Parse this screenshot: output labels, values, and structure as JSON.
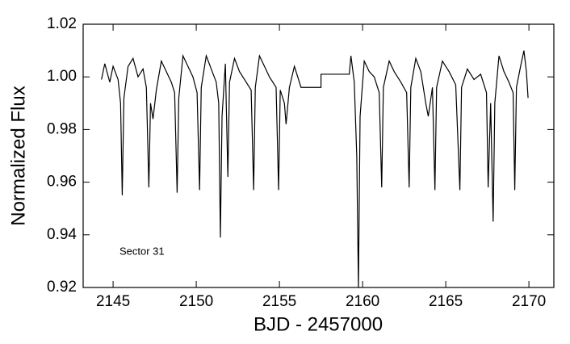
{
  "chart_data": {
    "type": "line",
    "annotation": "Sector 31",
    "x_label": "BJD - 2457000",
    "y_label": "Normalized Flux",
    "xlim": [
      2143.2,
      2171.5
    ],
    "ylim": [
      0.92,
      1.02
    ],
    "xticks": [
      2145,
      2150,
      2155,
      2160,
      2165,
      2170
    ],
    "yticks": [
      0.92,
      0.94,
      0.96,
      0.98,
      {
        "value": 1,
        "label": "1.00"
      },
      1.02
    ],
    "series": [
      {
        "color": "#000000",
        "x": [
          2144.3,
          2144.5,
          2144.8,
          2145.0,
          2145.3,
          2145.45,
          2145.55,
          2145.65,
          2145.9,
          2146.2,
          2146.5,
          2146.8,
          2147.0,
          2147.15,
          2147.25,
          2147.4,
          2147.6,
          2147.9,
          2148.2,
          2148.5,
          2148.7,
          2148.85,
          2148.95,
          2149.2,
          2149.5,
          2149.8,
          2150.05,
          2150.2,
          2150.3,
          2150.6,
          2150.9,
          2151.2,
          2151.35,
          2151.45,
          2151.55,
          2151.75,
          2151.9,
          2152.0,
          2152.3,
          2152.6,
          2152.9,
          2153.3,
          2153.45,
          2153.55,
          2153.8,
          2154.1,
          2154.4,
          2154.8,
          2154.95,
          2155.05,
          2155.3,
          2155.4,
          2155.6,
          2155.9,
          2156.2,
          2156.3,
          2157.5,
          2157.5,
          2159.2,
          2159.3,
          2159.5,
          2159.65,
          2159.75,
          2159.85,
          2160.1,
          2160.4,
          2160.7,
          2161.0,
          2161.15,
          2161.25,
          2161.6,
          2161.9,
          2162.3,
          2162.65,
          2162.8,
          2162.9,
          2163.2,
          2163.5,
          2163.8,
          2163.95,
          2164.2,
          2164.35,
          2164.45,
          2164.8,
          2165.2,
          2165.6,
          2165.85,
          2165.95,
          2166.3,
          2166.7,
          2167.1,
          2167.45,
          2167.55,
          2167.7,
          2167.85,
          2167.95,
          2168.2,
          2168.5,
          2168.8,
          2169.05,
          2169.15,
          2169.25,
          2169.5,
          2169.7,
          2169.85,
          2169.95
        ],
        "values": [
          0.999,
          1.005,
          0.998,
          1.004,
          0.999,
          0.99,
          0.955,
          0.992,
          1.004,
          1.007,
          1.0,
          1.003,
          0.996,
          0.958,
          0.99,
          0.984,
          0.995,
          1.006,
          1.002,
          0.998,
          0.994,
          0.956,
          0.992,
          1.008,
          1.004,
          1.0,
          0.994,
          0.957,
          0.996,
          1.008,
          1.003,
          0.998,
          0.99,
          0.939,
          0.985,
          1.005,
          0.962,
          0.998,
          1.007,
          1.002,
          0.999,
          0.995,
          0.957,
          0.996,
          1.008,
          1.004,
          1.0,
          0.996,
          0.957,
          0.995,
          0.99,
          0.982,
          0.996,
          1.004,
          0.998,
          0.996,
          0.996,
          1.001,
          1.001,
          1.008,
          0.998,
          0.97,
          0.92,
          0.985,
          1.006,
          1.002,
          1.0,
          0.994,
          0.958,
          0.996,
          1.006,
          1.002,
          0.998,
          0.994,
          0.958,
          0.996,
          1.007,
          1.002,
          0.99,
          0.985,
          0.996,
          0.957,
          0.996,
          1.006,
          1.002,
          0.997,
          0.957,
          0.996,
          1.003,
          0.999,
          1.001,
          0.994,
          0.958,
          0.99,
          0.945,
          0.99,
          1.008,
          1.002,
          0.998,
          0.994,
          0.957,
          0.996,
          1.004,
          1.01,
          1.002,
          0.992
        ]
      }
    ]
  }
}
